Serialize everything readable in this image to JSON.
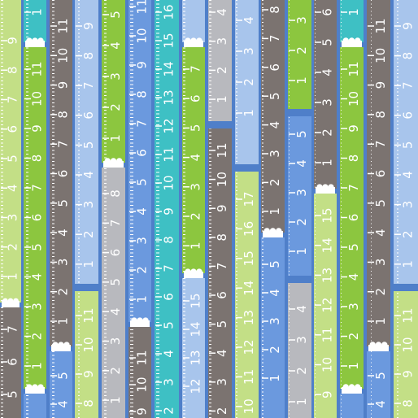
{
  "tapes": [
    {
      "segments": [
        {
          "labels": [
            "9",
            "8",
            "7",
            "6",
            "5",
            "4",
            "3",
            "2",
            "1"
          ]
        },
        {
          "labels": [
            "7",
            "6",
            "5"
          ]
        }
      ]
    },
    {
      "segments": [
        {
          "labels": [
            "1"
          ]
        },
        {
          "labels": [
            "11",
            "10",
            "9",
            "8",
            "7",
            "6",
            "5",
            "4",
            "3",
            "2",
            "1"
          ]
        }
      ]
    },
    {
      "segments": [
        {
          "labels": [
            "11",
            "10",
            "9",
            "8",
            "7",
            "6",
            "5",
            "4",
            "3",
            "2",
            "1"
          ]
        },
        {
          "labels": [
            "5",
            "4"
          ]
        }
      ]
    },
    {
      "segments": [
        {
          "labels": [
            "9",
            "8",
            "7",
            "6",
            "5",
            "4",
            "3",
            "2",
            "1"
          ]
        },
        {
          "labels": [
            "11",
            "10",
            "9",
            "8"
          ]
        }
      ]
    },
    {
      "segments": [
        {
          "labels": [
            "5",
            "4",
            "3",
            "2",
            "1"
          ]
        },
        {
          "labels": [
            "8",
            "7",
            "6",
            "5",
            "4",
            "3",
            "2",
            "1"
          ]
        }
      ]
    },
    {
      "segments": [
        {
          "labels": [
            "11",
            "10",
            "9",
            "8",
            "7",
            "6",
            "5",
            "4",
            "3",
            "2",
            "1"
          ]
        },
        {
          "labels": [
            "11",
            "10",
            "9"
          ]
        }
      ]
    },
    {
      "segments": [
        {
          "labels": [
            "16",
            "15",
            "14",
            "13",
            "12",
            "11",
            "10",
            "9",
            "8",
            "7",
            "6",
            "5",
            "4",
            "3",
            "2"
          ]
        }
      ]
    },
    {
      "segments": [
        {
          "labels": [
            "7",
            "6",
            "5",
            "4",
            "3",
            "2",
            "1"
          ]
        },
        {
          "labels": [
            "15",
            "14",
            "13",
            "12"
          ]
        }
      ]
    },
    {
      "segments": [
        {
          "labels": [
            "4",
            "3",
            "2",
            "1"
          ]
        },
        {
          "labels": [
            "11",
            "10",
            "9",
            "8",
            "7",
            "6",
            "5",
            "4",
            "3",
            "2"
          ]
        }
      ]
    },
    {
      "segments": [
        {
          "labels": [
            "4",
            "3",
            "2",
            "1"
          ]
        },
        {
          "labels": [
            "17",
            "16",
            "15",
            "14",
            "13",
            "12",
            "11",
            "10"
          ]
        }
      ]
    },
    {
      "segments": [
        {
          "labels": [
            "8",
            "7",
            "6",
            "5",
            "4",
            "3",
            "2",
            "1"
          ]
        },
        {
          "labels": [
            "5",
            "4",
            "3",
            "2",
            "1"
          ]
        }
      ]
    },
    {
      "segments": [
        {
          "labels": [
            "3",
            "2",
            "1"
          ]
        },
        {
          "labels": [
            "5",
            "4",
            "3",
            "2",
            "1"
          ]
        },
        {
          "labels": [
            "4",
            "3",
            "2",
            "1"
          ]
        }
      ]
    },
    {
      "segments": [
        {
          "labels": [
            "6",
            "5",
            "4",
            "3",
            "2",
            "1"
          ]
        },
        {
          "labels": [
            "15",
            "14",
            "13",
            "12",
            "11",
            "10",
            "9"
          ]
        }
      ]
    },
    {
      "segments": [
        {
          "labels": [
            "1"
          ]
        },
        {
          "labels": [
            "11",
            "10",
            "9",
            "8",
            "7",
            "6",
            "5",
            "4",
            "3",
            "2",
            "1"
          ]
        }
      ]
    },
    {
      "segments": [
        {
          "labels": [
            "11",
            "10",
            "9",
            "8",
            "7",
            "6",
            "5",
            "4",
            "3",
            "2",
            "1"
          ]
        },
        {
          "labels": [
            "5",
            "4"
          ]
        }
      ]
    },
    {
      "segments": [
        {
          "labels": [
            "9",
            "8",
            "7",
            "6",
            "5",
            "4",
            "3",
            "2",
            "1"
          ]
        },
        {
          "labels": [
            "11",
            "10",
            "9",
            "8"
          ]
        }
      ]
    }
  ]
}
